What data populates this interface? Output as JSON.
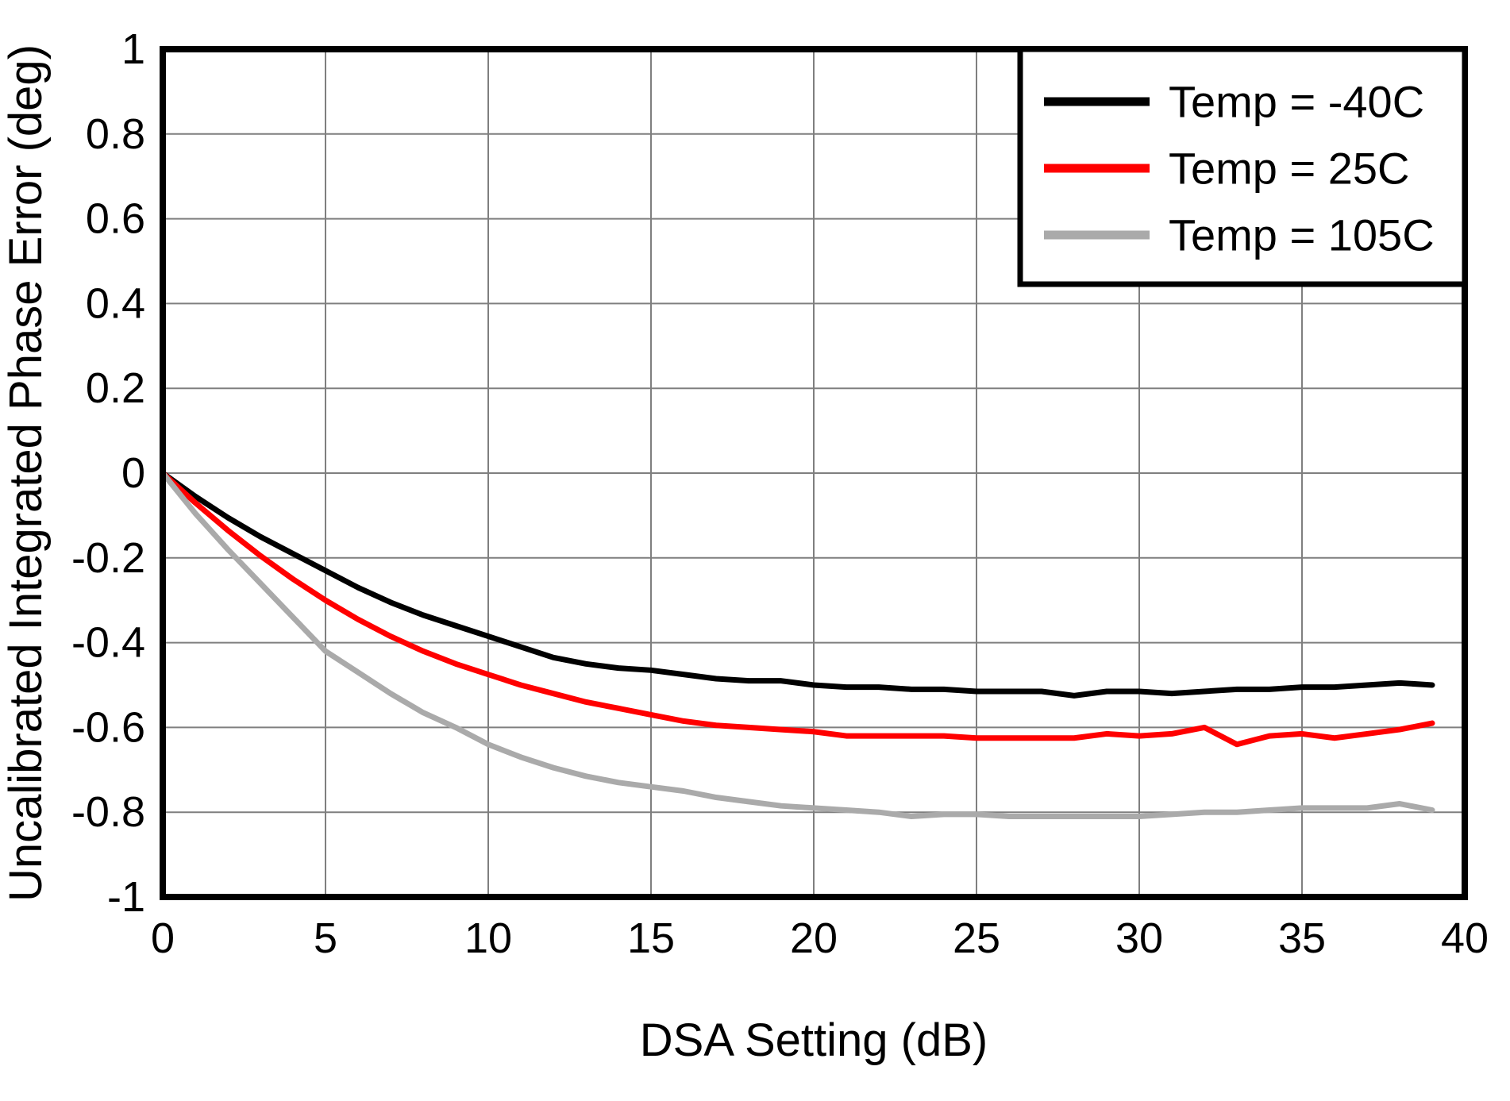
{
  "colors": {
    "background": "#ffffff",
    "grid": "#7f7f7f",
    "axis": "#000000",
    "series_black": "#000000",
    "series_red": "#ff0000",
    "series_gray": "#aaaaaa"
  },
  "chart_data": {
    "type": "line",
    "title": "",
    "xlabel": "DSA Setting (dB)",
    "ylabel": "Uncalibrated Integrated Phase Error (deg)",
    "xlim": [
      0,
      40
    ],
    "ylim": [
      -1,
      1
    ],
    "xticks": [
      0,
      5,
      10,
      15,
      20,
      25,
      30,
      35,
      40
    ],
    "yticks": [
      -1,
      -0.8,
      -0.6,
      -0.4,
      -0.2,
      0,
      0.2,
      0.4,
      0.6,
      0.8,
      1
    ],
    "grid": true,
    "legend_position": "top-right",
    "x": [
      0,
      1,
      2,
      3,
      4,
      5,
      6,
      7,
      8,
      9,
      10,
      11,
      12,
      13,
      14,
      15,
      16,
      17,
      18,
      19,
      20,
      21,
      22,
      23,
      24,
      25,
      26,
      27,
      28,
      29,
      30,
      31,
      32,
      33,
      34,
      35,
      36,
      37,
      38,
      39
    ],
    "series": [
      {
        "name": "Temp = -40C",
        "color": "#000000",
        "values": [
          0,
          -0.055,
          -0.105,
          -0.15,
          -0.19,
          -0.23,
          -0.27,
          -0.305,
          -0.335,
          -0.36,
          -0.385,
          -0.41,
          -0.435,
          -0.45,
          -0.46,
          -0.465,
          -0.475,
          -0.485,
          -0.49,
          -0.49,
          -0.5,
          -0.505,
          -0.505,
          -0.51,
          -0.51,
          -0.515,
          -0.515,
          -0.515,
          -0.525,
          -0.515,
          -0.515,
          -0.52,
          -0.515,
          -0.51,
          -0.51,
          -0.505,
          -0.505,
          -0.5,
          -0.495,
          -0.5
        ]
      },
      {
        "name": "Temp = 25C",
        "color": "#ff0000",
        "values": [
          0,
          -0.07,
          -0.135,
          -0.195,
          -0.25,
          -0.3,
          -0.345,
          -0.385,
          -0.42,
          -0.45,
          -0.475,
          -0.5,
          -0.52,
          -0.54,
          -0.555,
          -0.57,
          -0.585,
          -0.595,
          -0.6,
          -0.605,
          -0.61,
          -0.62,
          -0.62,
          -0.62,
          -0.62,
          -0.625,
          -0.625,
          -0.625,
          -0.625,
          -0.615,
          -0.62,
          -0.615,
          -0.6,
          -0.64,
          -0.62,
          -0.615,
          -0.625,
          -0.615,
          -0.605,
          -0.59
        ]
      },
      {
        "name": "Temp = 105C",
        "color": "#aaaaaa",
        "values": [
          0,
          -0.095,
          -0.18,
          -0.26,
          -0.34,
          -0.42,
          -0.47,
          -0.52,
          -0.565,
          -0.6,
          -0.64,
          -0.67,
          -0.695,
          -0.715,
          -0.73,
          -0.74,
          -0.75,
          -0.765,
          -0.775,
          -0.785,
          -0.79,
          -0.795,
          -0.8,
          -0.81,
          -0.805,
          -0.805,
          -0.81,
          -0.81,
          -0.81,
          -0.81,
          -0.81,
          -0.805,
          -0.8,
          -0.8,
          -0.795,
          -0.79,
          -0.79,
          -0.79,
          -0.78,
          -0.795
        ]
      }
    ]
  }
}
